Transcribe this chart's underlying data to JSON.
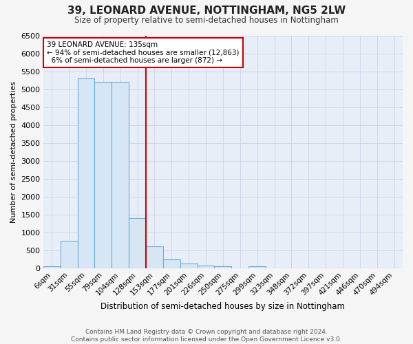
{
  "title": "39, LEONARD AVENUE, NOTTINGHAM, NG5 2LW",
  "subtitle": "Size of property relative to semi-detached houses in Nottingham",
  "xlabel": "Distribution of semi-detached houses by size in Nottingham",
  "ylabel": "Number of semi-detached properties",
  "property_label": "39 LEONARD AVENUE: 135sqm",
  "pct_smaller": 94,
  "num_smaller": 12863,
  "pct_larger": 6,
  "num_larger": 872,
  "bin_labels": [
    "6sqm",
    "31sqm",
    "55sqm",
    "79sqm",
    "104sqm",
    "128sqm",
    "153sqm",
    "177sqm",
    "201sqm",
    "226sqm",
    "250sqm",
    "275sqm",
    "299sqm",
    "323sqm",
    "348sqm",
    "372sqm",
    "397sqm",
    "421sqm",
    "446sqm",
    "470sqm",
    "494sqm"
  ],
  "bin_values": [
    60,
    780,
    5300,
    5200,
    5200,
    1400,
    620,
    260,
    130,
    70,
    60,
    0,
    60,
    0,
    0,
    0,
    0,
    0,
    0,
    0,
    0
  ],
  "bar_color": "#d6e6f5",
  "bar_edge_color": "#6aaed6",
  "vline_color": "#cc0000",
  "footer_text": "Contains HM Land Registry data © Crown copyright and database right 2024.\nContains public sector information licensed under the Open Government Licence v3.0.",
  "ylim_max": 6500,
  "yticks": [
    0,
    500,
    1000,
    1500,
    2000,
    2500,
    3000,
    3500,
    4000,
    4500,
    5000,
    5500,
    6000,
    6500
  ],
  "fig_bg_color": "#f5f5f5",
  "plot_bg_color": "#e8eef8",
  "grid_color": "#c8d4e8"
}
